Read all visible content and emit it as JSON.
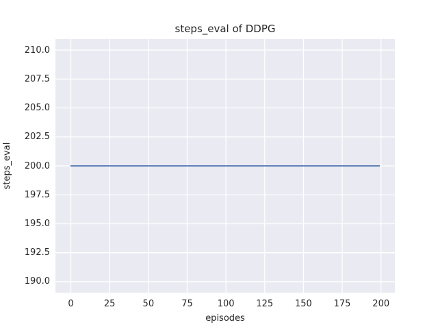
{
  "chart_data": {
    "type": "line",
    "title": "steps_eval of DDPG",
    "xlabel": "episodes",
    "ylabel": "steps_eval",
    "xlim": [
      -9.95,
      208.95
    ],
    "ylim": [
      189.05,
      210.95
    ],
    "xticks": [
      0,
      25,
      50,
      75,
      100,
      125,
      150,
      175,
      200
    ],
    "xtick_labels": [
      "0",
      "25",
      "50",
      "75",
      "100",
      "125",
      "150",
      "175",
      "200"
    ],
    "yticks": [
      190.0,
      192.5,
      195.0,
      197.5,
      200.0,
      202.5,
      205.0,
      207.5,
      210.0
    ],
    "ytick_labels": [
      "190.0",
      "192.5",
      "195.0",
      "197.5",
      "200.0",
      "202.5",
      "205.0",
      "207.5",
      "210.0"
    ],
    "grid": true,
    "legend_position": "none",
    "plot_background": "#eaeaf2",
    "grid_color": "#ffffff",
    "text_color": "#262626",
    "series": [
      {
        "name": "steps_eval",
        "color": "#4c72b0",
        "x": [
          0,
          199
        ],
        "y": [
          200,
          200
        ]
      }
    ]
  }
}
